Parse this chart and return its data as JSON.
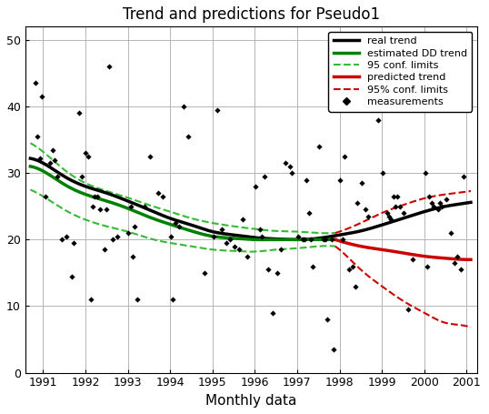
{
  "title": "Trend and predictions for Pseudo1",
  "xlabel": "Monthly data",
  "xlim_years": [
    1990.58,
    2001.25
  ],
  "ylim": [
    0,
    52
  ],
  "yticks": [
    0,
    10,
    20,
    30,
    40,
    50
  ],
  "xtick_years": [
    1991,
    1992,
    1993,
    1994,
    1995,
    1996,
    1997,
    1998,
    1999,
    2000,
    2001
  ],
  "measurements": [
    [
      1990.83,
      43.5
    ],
    [
      1990.87,
      35.5
    ],
    [
      1990.92,
      32.2
    ],
    [
      1990.97,
      41.5
    ],
    [
      1991.05,
      26.5
    ],
    [
      1991.17,
      31.5
    ],
    [
      1991.22,
      33.5
    ],
    [
      1991.28,
      32.0
    ],
    [
      1991.33,
      29.5
    ],
    [
      1991.45,
      20.0
    ],
    [
      1991.55,
      20.5
    ],
    [
      1991.67,
      14.5
    ],
    [
      1991.72,
      19.5
    ],
    [
      1991.85,
      39.0
    ],
    [
      1991.92,
      29.5
    ],
    [
      1992.0,
      33.0
    ],
    [
      1992.07,
      32.5
    ],
    [
      1992.12,
      11.0
    ],
    [
      1992.17,
      25.0
    ],
    [
      1992.22,
      26.5
    ],
    [
      1992.28,
      26.5
    ],
    [
      1992.35,
      24.5
    ],
    [
      1992.45,
      18.5
    ],
    [
      1992.5,
      24.5
    ],
    [
      1992.55,
      46.0
    ],
    [
      1992.65,
      20.0
    ],
    [
      1992.75,
      20.5
    ],
    [
      1993.0,
      21.0
    ],
    [
      1993.07,
      25.0
    ],
    [
      1993.12,
      17.5
    ],
    [
      1993.17,
      22.0
    ],
    [
      1993.22,
      11.0
    ],
    [
      1993.4,
      25.0
    ],
    [
      1993.52,
      32.5
    ],
    [
      1993.72,
      27.0
    ],
    [
      1993.82,
      26.5
    ],
    [
      1994.02,
      20.5
    ],
    [
      1994.07,
      11.0
    ],
    [
      1994.12,
      22.5
    ],
    [
      1994.22,
      22.0
    ],
    [
      1994.32,
      40.0
    ],
    [
      1994.42,
      35.5
    ],
    [
      1994.82,
      15.0
    ],
    [
      1995.02,
      20.5
    ],
    [
      1995.12,
      39.5
    ],
    [
      1995.22,
      21.5
    ],
    [
      1995.32,
      19.5
    ],
    [
      1995.42,
      20.0
    ],
    [
      1995.52,
      19.0
    ],
    [
      1995.62,
      18.5
    ],
    [
      1995.72,
      23.0
    ],
    [
      1995.82,
      17.5
    ],
    [
      1996.02,
      28.0
    ],
    [
      1996.12,
      21.5
    ],
    [
      1996.17,
      20.5
    ],
    [
      1996.22,
      29.5
    ],
    [
      1996.32,
      15.5
    ],
    [
      1996.42,
      9.0
    ],
    [
      1996.52,
      15.0
    ],
    [
      1996.62,
      18.5
    ],
    [
      1996.72,
      31.5
    ],
    [
      1996.82,
      31.0
    ],
    [
      1996.87,
      30.0
    ],
    [
      1997.02,
      20.5
    ],
    [
      1997.12,
      20.0
    ],
    [
      1997.17,
      20.0
    ],
    [
      1997.22,
      29.0
    ],
    [
      1997.27,
      24.0
    ],
    [
      1997.32,
      20.0
    ],
    [
      1997.37,
      16.0
    ],
    [
      1997.52,
      34.0
    ],
    [
      1997.62,
      20.0
    ],
    [
      1997.67,
      20.0
    ],
    [
      1997.72,
      8.0
    ],
    [
      1997.82,
      20.0
    ],
    [
      1997.87,
      3.5
    ],
    [
      1998.02,
      29.0
    ],
    [
      1998.07,
      20.0
    ],
    [
      1998.12,
      32.5
    ],
    [
      1998.22,
      15.5
    ],
    [
      1998.32,
      16.0
    ],
    [
      1998.37,
      13.0
    ],
    [
      1998.42,
      25.5
    ],
    [
      1998.52,
      28.5
    ],
    [
      1998.62,
      24.5
    ],
    [
      1998.67,
      23.5
    ],
    [
      1998.92,
      38.0
    ],
    [
      1999.02,
      30.0
    ],
    [
      1999.12,
      24.0
    ],
    [
      1999.17,
      23.5
    ],
    [
      1999.22,
      23.0
    ],
    [
      1999.27,
      26.5
    ],
    [
      1999.32,
      25.0
    ],
    [
      1999.37,
      26.5
    ],
    [
      1999.42,
      25.0
    ],
    [
      1999.52,
      24.0
    ],
    [
      1999.62,
      9.5
    ],
    [
      1999.72,
      17.0
    ],
    [
      2000.02,
      30.0
    ],
    [
      2000.07,
      16.0
    ],
    [
      2000.12,
      26.5
    ],
    [
      2000.17,
      25.5
    ],
    [
      2000.22,
      25.0
    ],
    [
      2000.32,
      24.5
    ],
    [
      2000.37,
      25.5
    ],
    [
      2000.42,
      25.0
    ],
    [
      2000.52,
      26.0
    ],
    [
      2000.62,
      21.0
    ],
    [
      2000.72,
      16.5
    ],
    [
      2000.77,
      17.5
    ],
    [
      2000.87,
      15.5
    ],
    [
      2000.92,
      29.5
    ]
  ],
  "real_trend_x": [
    1990.7,
    1991.0,
    1991.5,
    1992.0,
    1992.5,
    1993.0,
    1993.5,
    1994.0,
    1994.5,
    1995.0,
    1995.5,
    1996.0,
    1996.5,
    1997.0,
    1997.5,
    1998.0,
    1998.5,
    1999.0,
    1999.5,
    2000.0,
    2000.5,
    2001.0,
    2001.1
  ],
  "real_trend_y": [
    32.2,
    31.5,
    29.5,
    28.0,
    27.0,
    25.8,
    24.5,
    23.2,
    22.2,
    21.2,
    20.7,
    20.3,
    20.1,
    20.0,
    20.2,
    20.7,
    21.3,
    22.2,
    23.2,
    24.2,
    25.0,
    25.5,
    25.6
  ],
  "green_trend_x": [
    1990.7,
    1991.0,
    1991.5,
    1992.0,
    1992.5,
    1993.0,
    1993.5,
    1994.0,
    1994.5,
    1995.0,
    1995.5,
    1996.0,
    1996.5,
    1997.0,
    1997.5,
    1997.9
  ],
  "green_trend_y": [
    31.0,
    30.3,
    28.3,
    26.8,
    25.8,
    24.7,
    23.4,
    22.3,
    21.3,
    20.5,
    20.2,
    20.0,
    20.0,
    20.0,
    20.0,
    20.0
  ],
  "green_upper_x": [
    1990.7,
    1991.0,
    1991.5,
    1992.0,
    1992.5,
    1993.0,
    1993.5,
    1994.0,
    1994.5,
    1995.0,
    1995.5,
    1996.0,
    1996.5,
    1997.0,
    1997.5,
    1997.9
  ],
  "green_upper_y": [
    34.5,
    33.2,
    30.5,
    28.5,
    27.3,
    26.3,
    25.2,
    24.2,
    23.2,
    22.5,
    22.0,
    21.6,
    21.3,
    21.2,
    21.0,
    21.0
  ],
  "green_lower_x": [
    1990.7,
    1991.0,
    1991.5,
    1992.0,
    1992.5,
    1993.0,
    1993.5,
    1994.0,
    1994.5,
    1995.0,
    1995.5,
    1996.0,
    1996.5,
    1997.0,
    1997.5,
    1997.9
  ],
  "green_lower_y": [
    27.5,
    26.5,
    24.5,
    23.0,
    22.0,
    21.2,
    20.2,
    19.5,
    19.0,
    18.5,
    18.3,
    18.2,
    18.5,
    18.7,
    19.0,
    19.0
  ],
  "red_trend_x": [
    1997.9,
    1998.0,
    1998.5,
    1999.0,
    1999.5,
    2000.0,
    2000.5,
    2001.0,
    2001.1
  ],
  "red_trend_y": [
    20.0,
    19.8,
    19.0,
    18.5,
    18.0,
    17.5,
    17.2,
    17.0,
    17.0
  ],
  "red_upper_x": [
    1997.9,
    1998.0,
    1998.5,
    1999.0,
    1999.5,
    2000.0,
    2000.5,
    2001.0,
    2001.1
  ],
  "red_upper_y": [
    21.0,
    21.2,
    22.5,
    24.0,
    25.2,
    26.2,
    26.8,
    27.2,
    27.3
  ],
  "red_lower_x": [
    1997.9,
    1998.0,
    1998.5,
    1999.0,
    1999.5,
    2000.0,
    2000.5,
    2001.0,
    2001.1
  ],
  "red_lower_y": [
    19.0,
    18.5,
    15.5,
    13.0,
    10.8,
    9.0,
    7.5,
    7.0,
    6.8
  ],
  "legend_entries": [
    {
      "label": "real trend",
      "color": "#000000",
      "lw": 2.5,
      "ls": "-",
      "type": "line"
    },
    {
      "label": "estimated DD trend",
      "color": "#008000",
      "lw": 2.5,
      "ls": "-",
      "type": "line"
    },
    {
      "label": "95 conf. limits",
      "color": "#33bb33",
      "lw": 1.5,
      "ls": "--",
      "type": "line"
    },
    {
      "label": "predicted trend",
      "color": "#cc0000",
      "lw": 2.5,
      "ls": "-",
      "type": "line"
    },
    {
      "label": "95% conf. limits",
      "color": "#cc0000",
      "lw": 1.5,
      "ls": "--",
      "type": "line"
    },
    {
      "label": "measurements",
      "color": "#000000",
      "marker": "D",
      "ms": 4,
      "type": "scatter"
    }
  ],
  "bg_color": "#ffffff",
  "grid_color": "#aaaaaa",
  "title_fontsize": 12,
  "label_fontsize": 11,
  "tick_fontsize": 9,
  "legend_fontsize": 8
}
